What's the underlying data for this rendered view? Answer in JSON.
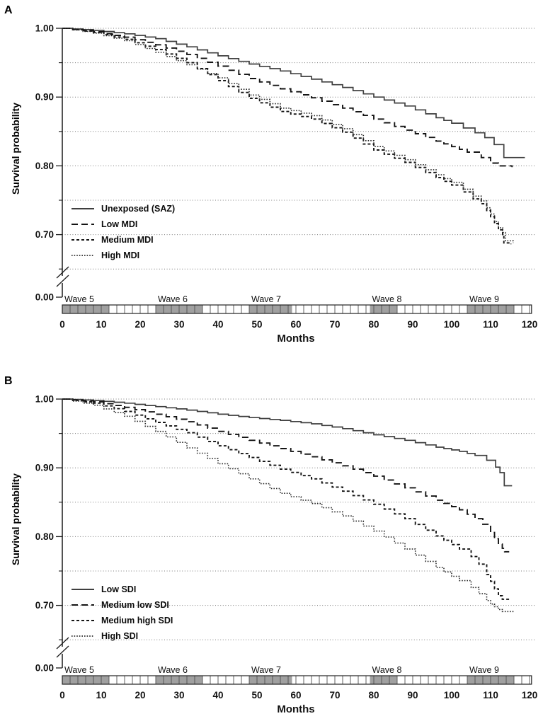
{
  "figure": {
    "panels": [
      {
        "letter": "A"
      },
      {
        "letter": "B"
      }
    ]
  },
  "colors": {
    "background": "#ffffff",
    "curve_solid": "#3f3f3f",
    "curve_dark": "#141414",
    "curve_dot": "#2b2b2b",
    "grid": "#7d7d7d",
    "axis": "#1a1a1a",
    "wave_bar_fill": "#a0a0a0",
    "wave_bar_border": "#222222",
    "wave_bar_divider": "#4f4f4f"
  },
  "chart_data": [
    {
      "type": "line",
      "subtype": "kaplan-meier-step",
      "panel": "A",
      "xlabel": "Months",
      "ylabel": "Survival probability",
      "xlim": [
        0,
        120
      ],
      "ylim_main": [
        0.65,
        1.0
      ],
      "y_axis_break_to": 0.0,
      "xticks": [
        0,
        10,
        20,
        30,
        40,
        50,
        60,
        70,
        80,
        90,
        100,
        110,
        120
      ],
      "yticks_labeled": [
        1.0,
        0.9,
        0.8,
        0.7
      ],
      "ytick_break_label": 0.0,
      "yticks_minor": [
        0.95,
        0.85,
        0.75,
        0.65
      ],
      "gridlines": [
        1.0,
        0.95,
        0.9,
        0.85,
        0.8,
        0.75,
        0.7,
        0.65
      ],
      "grid_style": "dotted-horizontal",
      "legend_position": "inside-lower-left",
      "waves": [
        {
          "label": "Wave 5",
          "start": 0,
          "end": 12
        },
        {
          "label": "Wave 6",
          "start": 24,
          "end": 36
        },
        {
          "label": "Wave 7",
          "start": 48,
          "end": 59
        },
        {
          "label": "Wave 8",
          "start": 79,
          "end": 86
        },
        {
          "label": "Wave 9",
          "start": 104,
          "end": 116
        }
      ],
      "series": [
        {
          "name": "Unexposed (SAZ)",
          "dash": "solid",
          "points": [
            [
              0,
              1.0
            ],
            [
              8,
              0.997
            ],
            [
              16,
              0.992
            ],
            [
              24,
              0.985
            ],
            [
              32,
              0.973
            ],
            [
              40,
              0.96
            ],
            [
              48,
              0.948
            ],
            [
              56,
              0.938
            ],
            [
              64,
              0.926
            ],
            [
              72,
              0.914
            ],
            [
              80,
              0.9
            ],
            [
              88,
              0.887
            ],
            [
              96,
              0.87
            ],
            [
              100,
              0.862
            ],
            [
              103,
              0.855
            ],
            [
              106,
              0.848
            ],
            [
              108.5,
              0.841
            ],
            [
              110.9,
              0.831
            ],
            [
              113.4,
              0.83
            ],
            [
              113.4,
              0.812
            ],
            [
              118.8,
              0.812
            ]
          ]
        },
        {
          "name": "Low MDI",
          "dash": "longdash",
          "points": [
            [
              0,
              1.0
            ],
            [
              8,
              0.995
            ],
            [
              16,
              0.987
            ],
            [
              24,
              0.976
            ],
            [
              32,
              0.962
            ],
            [
              40,
              0.945
            ],
            [
              48,
              0.927
            ],
            [
              56,
              0.912
            ],
            [
              64,
              0.899
            ],
            [
              72,
              0.884
            ],
            [
              80,
              0.868
            ],
            [
              88,
              0.852
            ],
            [
              96,
              0.836
            ],
            [
              100,
              0.828
            ],
            [
              104,
              0.82
            ],
            [
              107.6,
              0.812
            ],
            [
              110,
              0.804
            ],
            [
              112,
              0.8
            ],
            [
              115.5,
              0.798
            ]
          ]
        },
        {
          "name": "Medium MDI",
          "dash": "shortdash",
          "points": [
            [
              0,
              1.0
            ],
            [
              8,
              0.994
            ],
            [
              16,
              0.984
            ],
            [
              24,
              0.969
            ],
            [
              32,
              0.95
            ],
            [
              40,
              0.924
            ],
            [
              48,
              0.898
            ],
            [
              56,
              0.879
            ],
            [
              64,
              0.868
            ],
            [
              72,
              0.849
            ],
            [
              80,
              0.823
            ],
            [
              88,
              0.805
            ],
            [
              96,
              0.783
            ],
            [
              100,
              0.772
            ],
            [
              103,
              0.762
            ],
            [
              105.5,
              0.752
            ],
            [
              107.6,
              0.745
            ],
            [
              109,
              0.735
            ],
            [
              110,
              0.726
            ],
            [
              111,
              0.716
            ],
            [
              112,
              0.707
            ],
            [
              113.1,
              0.7
            ],
            [
              113.4,
              0.688
            ],
            [
              115.2,
              0.686
            ]
          ]
        },
        {
          "name": "High MDI",
          "dash": "dot",
          "points": [
            [
              0,
              1.0
            ],
            [
              8,
              0.993
            ],
            [
              16,
              0.982
            ],
            [
              24,
              0.965
            ],
            [
              32,
              0.947
            ],
            [
              40,
              0.928
            ],
            [
              48,
              0.903
            ],
            [
              56,
              0.884
            ],
            [
              64,
              0.873
            ],
            [
              72,
              0.854
            ],
            [
              80,
              0.828
            ],
            [
              88,
              0.809
            ],
            [
              96,
              0.787
            ],
            [
              100,
              0.776
            ],
            [
              103,
              0.766
            ],
            [
              105.5,
              0.756
            ],
            [
              107.6,
              0.749
            ],
            [
              109,
              0.739
            ],
            [
              110,
              0.73
            ],
            [
              111,
              0.719
            ],
            [
              112,
              0.71
            ],
            [
              113.1,
              0.703
            ],
            [
              113.8,
              0.691
            ],
            [
              115.8,
              0.688
            ]
          ]
        }
      ]
    },
    {
      "type": "line",
      "subtype": "kaplan-meier-step",
      "panel": "B",
      "xlabel": "Months",
      "ylabel": "Survival probability",
      "xlim": [
        0,
        120
      ],
      "ylim_main": [
        0.65,
        1.0
      ],
      "y_axis_break_to": 0.0,
      "xticks": [
        0,
        10,
        20,
        30,
        40,
        50,
        60,
        70,
        80,
        90,
        100,
        110,
        120
      ],
      "yticks_labeled": [
        1.0,
        0.9,
        0.8,
        0.7
      ],
      "ytick_break_label": 0.0,
      "yticks_minor": [
        0.95,
        0.85,
        0.75,
        0.65
      ],
      "gridlines": [
        1.0,
        0.95,
        0.9,
        0.85,
        0.8,
        0.75,
        0.7,
        0.65
      ],
      "grid_style": "dotted-horizontal",
      "legend_position": "inside-lower-left",
      "waves": [
        {
          "label": "Wave 5",
          "start": 0,
          "end": 12
        },
        {
          "label": "Wave 6",
          "start": 24,
          "end": 36
        },
        {
          "label": "Wave 7",
          "start": 48,
          "end": 59
        },
        {
          "label": "Wave 8",
          "start": 79,
          "end": 86
        },
        {
          "label": "Wave 9",
          "start": 104,
          "end": 116
        }
      ],
      "series": [
        {
          "name": "Low SDI",
          "dash": "solid",
          "points": [
            [
              0,
              1.0
            ],
            [
              8,
              0.998
            ],
            [
              16,
              0.994
            ],
            [
              24,
              0.989
            ],
            [
              32,
              0.984
            ],
            [
              40,
              0.978
            ],
            [
              48,
              0.973
            ],
            [
              56,
              0.969
            ],
            [
              64,
              0.964
            ],
            [
              72,
              0.957
            ],
            [
              80,
              0.948
            ],
            [
              88,
              0.94
            ],
            [
              96,
              0.93
            ],
            [
              102,
              0.924
            ],
            [
              106,
              0.918
            ],
            [
              109,
              0.911
            ],
            [
              111.3,
              0.901
            ],
            [
              112.4,
              0.893
            ],
            [
              113.5,
              0.892
            ],
            [
              113.5,
              0.874
            ],
            [
              115.5,
              0.874
            ]
          ]
        },
        {
          "name": "Medium low SDI",
          "dash": "longdash",
          "points": [
            [
              0,
              1.0
            ],
            [
              8,
              0.996
            ],
            [
              16,
              0.988
            ],
            [
              24,
              0.978
            ],
            [
              32,
              0.967
            ],
            [
              40,
              0.953
            ],
            [
              48,
              0.94
            ],
            [
              56,
              0.928
            ],
            [
              64,
              0.916
            ],
            [
              72,
              0.903
            ],
            [
              80,
              0.888
            ],
            [
              88,
              0.871
            ],
            [
              96,
              0.853
            ],
            [
              102,
              0.839
            ],
            [
              106,
              0.826
            ],
            [
              108,
              0.818
            ],
            [
              110,
              0.806
            ],
            [
              111,
              0.797
            ],
            [
              112,
              0.789
            ],
            [
              113,
              0.783
            ],
            [
              113.6,
              0.778
            ],
            [
              114.6,
              0.777
            ]
          ]
        },
        {
          "name": "Medium high SDI",
          "dash": "shortdash",
          "points": [
            [
              0,
              1.0
            ],
            [
              8,
              0.994
            ],
            [
              16,
              0.982
            ],
            [
              24,
              0.966
            ],
            [
              32,
              0.951
            ],
            [
              40,
              0.932
            ],
            [
              48,
              0.915
            ],
            [
              56,
              0.898
            ],
            [
              64,
              0.884
            ],
            [
              72,
              0.866
            ],
            [
              80,
              0.847
            ],
            [
              88,
              0.826
            ],
            [
              96,
              0.801
            ],
            [
              102,
              0.782
            ],
            [
              105,
              0.771
            ],
            [
              107,
              0.76
            ],
            [
              109,
              0.745
            ],
            [
              110,
              0.735
            ],
            [
              111,
              0.724
            ],
            [
              112,
              0.714
            ],
            [
              113,
              0.709
            ],
            [
              114.8,
              0.707
            ]
          ]
        },
        {
          "name": "High SDI",
          "dash": "dot",
          "points": [
            [
              0,
              1.0
            ],
            [
              8,
              0.991
            ],
            [
              16,
              0.975
            ],
            [
              24,
              0.953
            ],
            [
              32,
              0.929
            ],
            [
              40,
              0.906
            ],
            [
              48,
              0.884
            ],
            [
              56,
              0.863
            ],
            [
              64,
              0.848
            ],
            [
              72,
              0.83
            ],
            [
              80,
              0.808
            ],
            [
              88,
              0.782
            ],
            [
              96,
              0.755
            ],
            [
              102,
              0.736
            ],
            [
              105,
              0.726
            ],
            [
              107,
              0.717
            ],
            [
              109,
              0.707
            ],
            [
              110,
              0.702
            ],
            [
              111,
              0.698
            ],
            [
              112,
              0.694
            ],
            [
              113,
              0.691
            ],
            [
              116,
              0.69
            ]
          ]
        }
      ]
    }
  ]
}
